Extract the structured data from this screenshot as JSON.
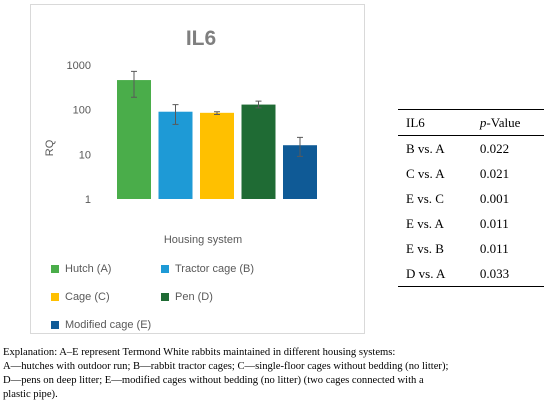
{
  "chart_data": {
    "type": "bar",
    "title": "IL6",
    "xlabel": "Housing system",
    "ylabel": "RQ",
    "yscale": "log",
    "ylim": [
      1,
      1000
    ],
    "yticks": [
      "1",
      "10",
      "100",
      "1000"
    ],
    "grid": false,
    "legend_position": "bottom",
    "series": [
      {
        "name": "Hutch (A)",
        "value": 460,
        "error_low": 190,
        "error_high": 720,
        "color": "#4aad4a"
      },
      {
        "name": "Tractor cage (B)",
        "value": 90,
        "error_low": 47,
        "error_high": 130,
        "color": "#1e9ad6"
      },
      {
        "name": "Cage (C)",
        "value": 85,
        "error_low": 78,
        "error_high": 90,
        "color": "#ffc000"
      },
      {
        "name": "Pen (D)",
        "value": 130,
        "error_low": 110,
        "error_high": 155,
        "color": "#1f6b34"
      },
      {
        "name": "Modified cage (E)",
        "value": 16,
        "error_low": 9,
        "error_high": 24,
        "color": "#0f5a96"
      }
    ]
  },
  "table": {
    "headers": [
      "IL6",
      "p-Value"
    ],
    "rows": [
      [
        "B vs. A",
        "0.022"
      ],
      [
        "C vs. A",
        "0.021"
      ],
      [
        "E vs. C",
        "0.001"
      ],
      [
        "E vs. A",
        "0.011"
      ],
      [
        "E vs. B",
        "0.011"
      ],
      [
        "D vs. A",
        "0.033"
      ]
    ]
  },
  "explanation": {
    "line1": "Explanation: A–E represent Termond White rabbits maintained in different housing systems:",
    "line2": "A—hutches with outdoor run; B—rabbit tractor cages; C—single-floor cages without bedding (no litter);",
    "line3": "D—pens on deep litter; E—modified cages without bedding (no litter) (two cages connected with a",
    "line4": "plastic pipe)."
  }
}
